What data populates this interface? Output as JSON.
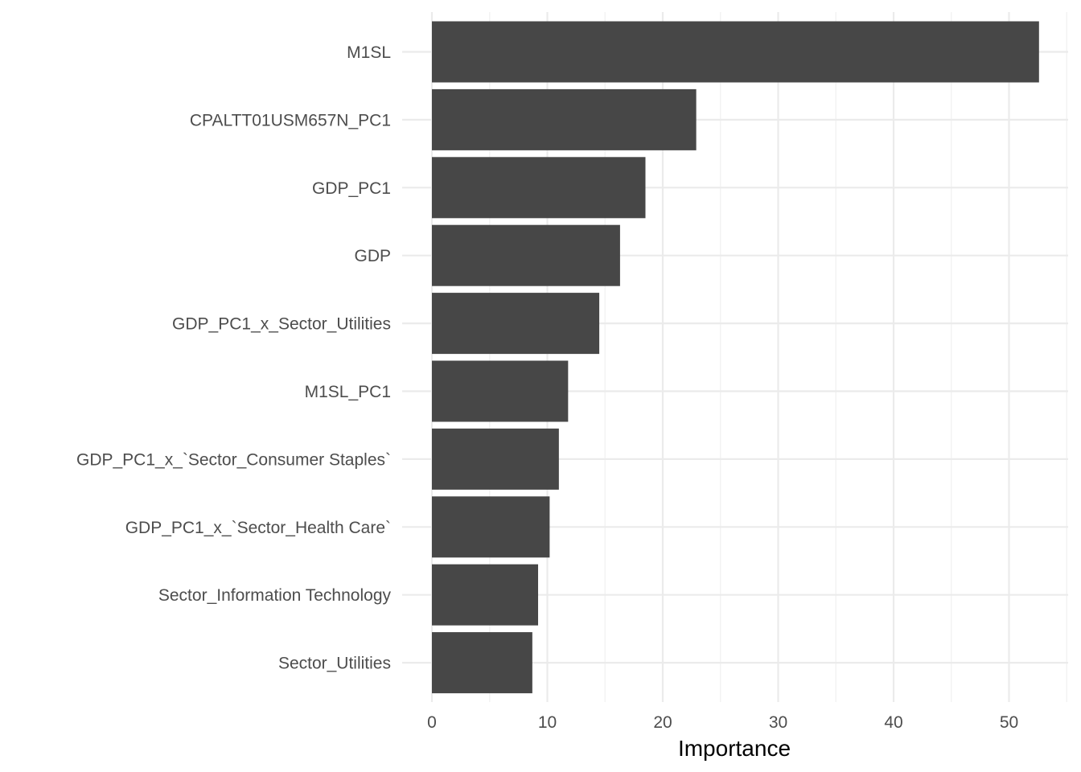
{
  "chart_data": {
    "type": "bar",
    "orientation": "horizontal",
    "title": "",
    "xlabel": "Importance",
    "ylabel": "",
    "xlim": [
      0,
      55
    ],
    "x_ticks": [
      0,
      10,
      20,
      30,
      40,
      50
    ],
    "x_tick_labels": [
      "0",
      "10",
      "20",
      "30",
      "40",
      "50"
    ],
    "grid": true,
    "legend": "none",
    "categories": [
      "M1SL",
      "CPALTT01USM657N_PC1",
      "GDP_PC1",
      "GDP",
      "GDP_PC1_x_Sector_Utilities",
      "M1SL_PC1",
      "GDP_PC1_x_`Sector_Consumer Staples`",
      "GDP_PC1_x_`Sector_Health Care`",
      "Sector_Information Technology",
      "Sector_Utilities"
    ],
    "values": [
      52.6,
      22.9,
      18.5,
      16.3,
      14.5,
      11.8,
      11.0,
      10.2,
      9.2,
      8.7
    ],
    "colors": {
      "bar": "#474747",
      "grid_major": "#ebebeb",
      "grid_minor": "#f3f3f3",
      "tick_label": "#4d4d4d",
      "axis_title": "#000000"
    }
  }
}
